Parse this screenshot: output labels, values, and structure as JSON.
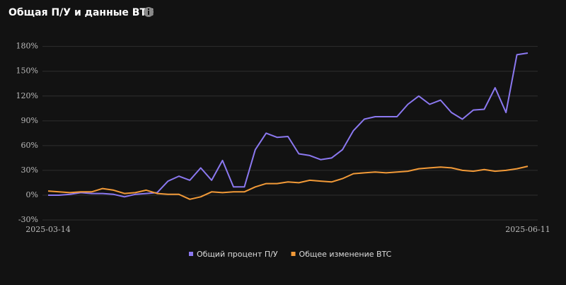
{
  "chart_data": {
    "type": "line",
    "title": "Общая П/У и данные BTC",
    "categories": [
      "2025-03-14",
      null,
      null,
      null,
      null,
      null,
      null,
      null,
      null,
      null,
      null,
      null,
      null,
      null,
      null,
      null,
      null,
      null,
      null,
      null,
      null,
      null,
      null,
      null,
      null,
      null,
      null,
      null,
      null,
      null,
      null,
      null,
      null,
      null,
      null,
      null,
      null,
      null,
      null,
      null,
      null,
      null,
      null,
      null,
      "2025-06-11"
    ],
    "series": [
      {
        "name": "Общий процент П/У",
        "color": "#8b78f0",
        "values": [
          0,
          0,
          1,
          3,
          2,
          2,
          1,
          -2,
          1,
          2,
          3,
          17,
          23,
          18,
          33,
          18,
          42,
          10,
          10,
          55,
          75,
          70,
          71,
          50,
          48,
          43,
          45,
          55,
          78,
          92,
          95,
          95,
          95,
          110,
          120,
          110,
          115,
          100,
          92,
          103,
          104,
          130,
          100,
          170,
          172
        ]
      },
      {
        "name": "Общее изменение BTC",
        "color": "#f29a38",
        "values": [
          5,
          4,
          3,
          4,
          4,
          8,
          6,
          2,
          3,
          6,
          2,
          1,
          1,
          -5,
          -2,
          4,
          3,
          4,
          4,
          10,
          14,
          14,
          16,
          15,
          18,
          17,
          16,
          20,
          26,
          27,
          28,
          27,
          28,
          29,
          32,
          33,
          34,
          33,
          30,
          29,
          31,
          29,
          30,
          32,
          35
        ]
      }
    ],
    "ylim": [
      -30,
      190
    ],
    "yticks": [
      {
        "value": -30,
        "label": "-30%"
      },
      {
        "value": 0,
        "label": "0%"
      },
      {
        "value": 30,
        "label": "30%"
      },
      {
        "value": 60,
        "label": "60%"
      },
      {
        "value": 90,
        "label": "90%"
      },
      {
        "value": 120,
        "label": "120%"
      },
      {
        "value": 150,
        "label": "150%"
      },
      {
        "value": 180,
        "label": "180%"
      }
    ],
    "grid": true
  }
}
